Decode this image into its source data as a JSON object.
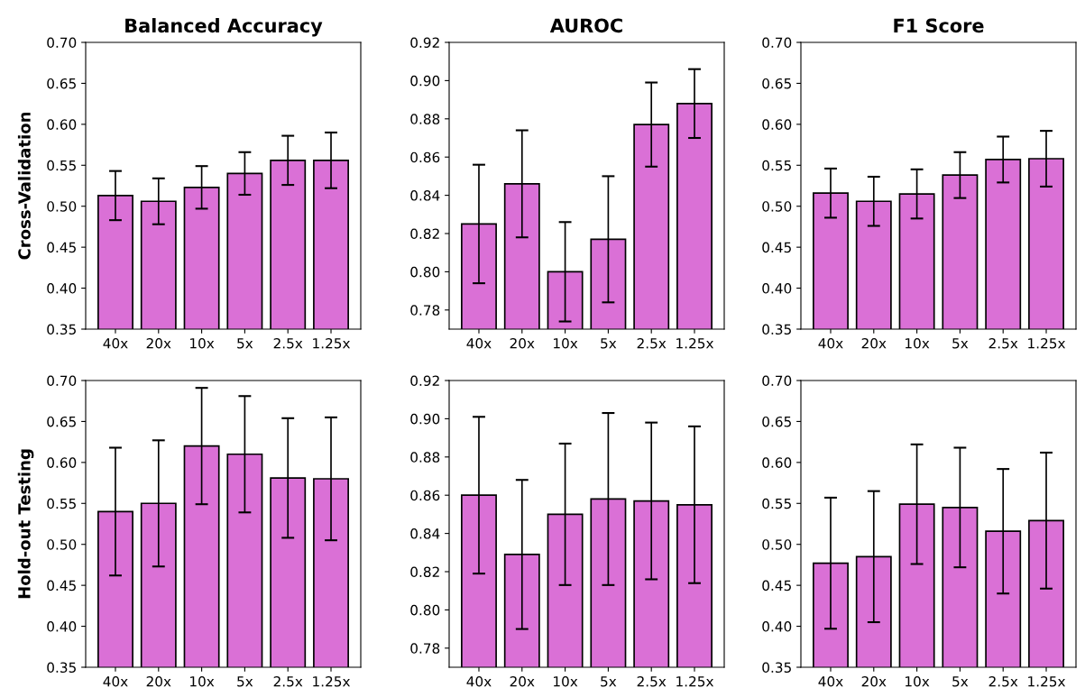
{
  "chart_data": [
    {
      "type": "bar",
      "title": "Balanced Accuracy",
      "ylabel": "Cross-Validation",
      "categories": [
        "40x",
        "20x",
        "10x",
        "5x",
        "2.5x",
        "1.25x"
      ],
      "color": "#da70d6",
      "values": [
        0.513,
        0.506,
        0.523,
        0.54,
        0.556,
        0.556
      ],
      "errors": [
        0.03,
        0.028,
        0.026,
        0.026,
        0.03,
        0.034
      ],
      "ylim": [
        0.35,
        0.7
      ],
      "yticks": [
        {
          "value": 0.35,
          "label": "0.35"
        },
        {
          "value": 0.4,
          "label": "0.40"
        },
        {
          "value": 0.45,
          "label": "0.45"
        },
        {
          "value": 0.5,
          "label": "0.50"
        },
        {
          "value": 0.55,
          "label": "0.55"
        },
        {
          "value": 0.6,
          "label": "0.60"
        },
        {
          "value": 0.65,
          "label": "0.65"
        },
        {
          "value": 0.7,
          "label": "0.70"
        }
      ]
    },
    {
      "type": "bar",
      "title": "AUROC",
      "categories": [
        "40x",
        "20x",
        "10x",
        "5x",
        "2.5x",
        "1.25x"
      ],
      "color": "#da70d6",
      "values": [
        0.825,
        0.846,
        0.8,
        0.817,
        0.877,
        0.888
      ],
      "errors": [
        0.031,
        0.028,
        0.026,
        0.033,
        0.022,
        0.018
      ],
      "ylim": [
        0.77,
        0.92
      ],
      "yticks": [
        {
          "value": 0.78,
          "label": "0.78"
        },
        {
          "value": 0.8,
          "label": "0.80"
        },
        {
          "value": 0.82,
          "label": "0.82"
        },
        {
          "value": 0.84,
          "label": "0.84"
        },
        {
          "value": 0.86,
          "label": "0.86"
        },
        {
          "value": 0.88,
          "label": "0.88"
        },
        {
          "value": 0.9,
          "label": "0.90"
        },
        {
          "value": 0.92,
          "label": "0.92"
        }
      ]
    },
    {
      "type": "bar",
      "title": "F1 Score",
      "categories": [
        "40x",
        "20x",
        "10x",
        "5x",
        "2.5x",
        "1.25x"
      ],
      "color": "#da70d6",
      "values": [
        0.516,
        0.506,
        0.515,
        0.538,
        0.557,
        0.558
      ],
      "errors": [
        0.03,
        0.03,
        0.03,
        0.028,
        0.028,
        0.034
      ],
      "ylim": [
        0.35,
        0.7
      ],
      "yticks": [
        {
          "value": 0.35,
          "label": "0.35"
        },
        {
          "value": 0.4,
          "label": "0.40"
        },
        {
          "value": 0.45,
          "label": "0.45"
        },
        {
          "value": 0.5,
          "label": "0.50"
        },
        {
          "value": 0.55,
          "label": "0.55"
        },
        {
          "value": 0.6,
          "label": "0.60"
        },
        {
          "value": 0.65,
          "label": "0.65"
        },
        {
          "value": 0.7,
          "label": "0.70"
        }
      ]
    },
    {
      "type": "bar",
      "ylabel": "Hold-out Testing",
      "categories": [
        "40x",
        "20x",
        "10x",
        "5x",
        "2.5x",
        "1.25x"
      ],
      "color": "#da70d6",
      "values": [
        0.54,
        0.55,
        0.62,
        0.61,
        0.581,
        0.58
      ],
      "errors": [
        0.078,
        0.077,
        0.071,
        0.071,
        0.073,
        0.075
      ],
      "ylim": [
        0.35,
        0.7
      ],
      "yticks": [
        {
          "value": 0.35,
          "label": "0.35"
        },
        {
          "value": 0.4,
          "label": "0.40"
        },
        {
          "value": 0.45,
          "label": "0.45"
        },
        {
          "value": 0.5,
          "label": "0.50"
        },
        {
          "value": 0.55,
          "label": "0.55"
        },
        {
          "value": 0.6,
          "label": "0.60"
        },
        {
          "value": 0.65,
          "label": "0.65"
        },
        {
          "value": 0.7,
          "label": "0.70"
        }
      ]
    },
    {
      "type": "bar",
      "categories": [
        "40x",
        "20x",
        "10x",
        "5x",
        "2.5x",
        "1.25x"
      ],
      "color": "#da70d6",
      "values": [
        0.86,
        0.829,
        0.85,
        0.858,
        0.857,
        0.855
      ],
      "errors": [
        0.041,
        0.039,
        0.037,
        0.045,
        0.041,
        0.041
      ],
      "ylim": [
        0.77,
        0.92
      ],
      "yticks": [
        {
          "value": 0.78,
          "label": "0.78"
        },
        {
          "value": 0.8,
          "label": "0.80"
        },
        {
          "value": 0.82,
          "label": "0.82"
        },
        {
          "value": 0.84,
          "label": "0.84"
        },
        {
          "value": 0.86,
          "label": "0.86"
        },
        {
          "value": 0.88,
          "label": "0.88"
        },
        {
          "value": 0.9,
          "label": "0.90"
        },
        {
          "value": 0.92,
          "label": "0.92"
        }
      ]
    },
    {
      "type": "bar",
      "categories": [
        "40x",
        "20x",
        "10x",
        "5x",
        "2.5x",
        "1.25x"
      ],
      "color": "#da70d6",
      "values": [
        0.477,
        0.485,
        0.549,
        0.545,
        0.516,
        0.529
      ],
      "errors": [
        0.08,
        0.08,
        0.073,
        0.073,
        0.076,
        0.083
      ],
      "ylim": [
        0.35,
        0.7
      ],
      "yticks": [
        {
          "value": 0.35,
          "label": "0.35"
        },
        {
          "value": 0.4,
          "label": "0.40"
        },
        {
          "value": 0.45,
          "label": "0.45"
        },
        {
          "value": 0.5,
          "label": "0.50"
        },
        {
          "value": 0.55,
          "label": "0.55"
        },
        {
          "value": 0.6,
          "label": "0.60"
        },
        {
          "value": 0.65,
          "label": "0.65"
        },
        {
          "value": 0.7,
          "label": "0.70"
        }
      ]
    }
  ]
}
